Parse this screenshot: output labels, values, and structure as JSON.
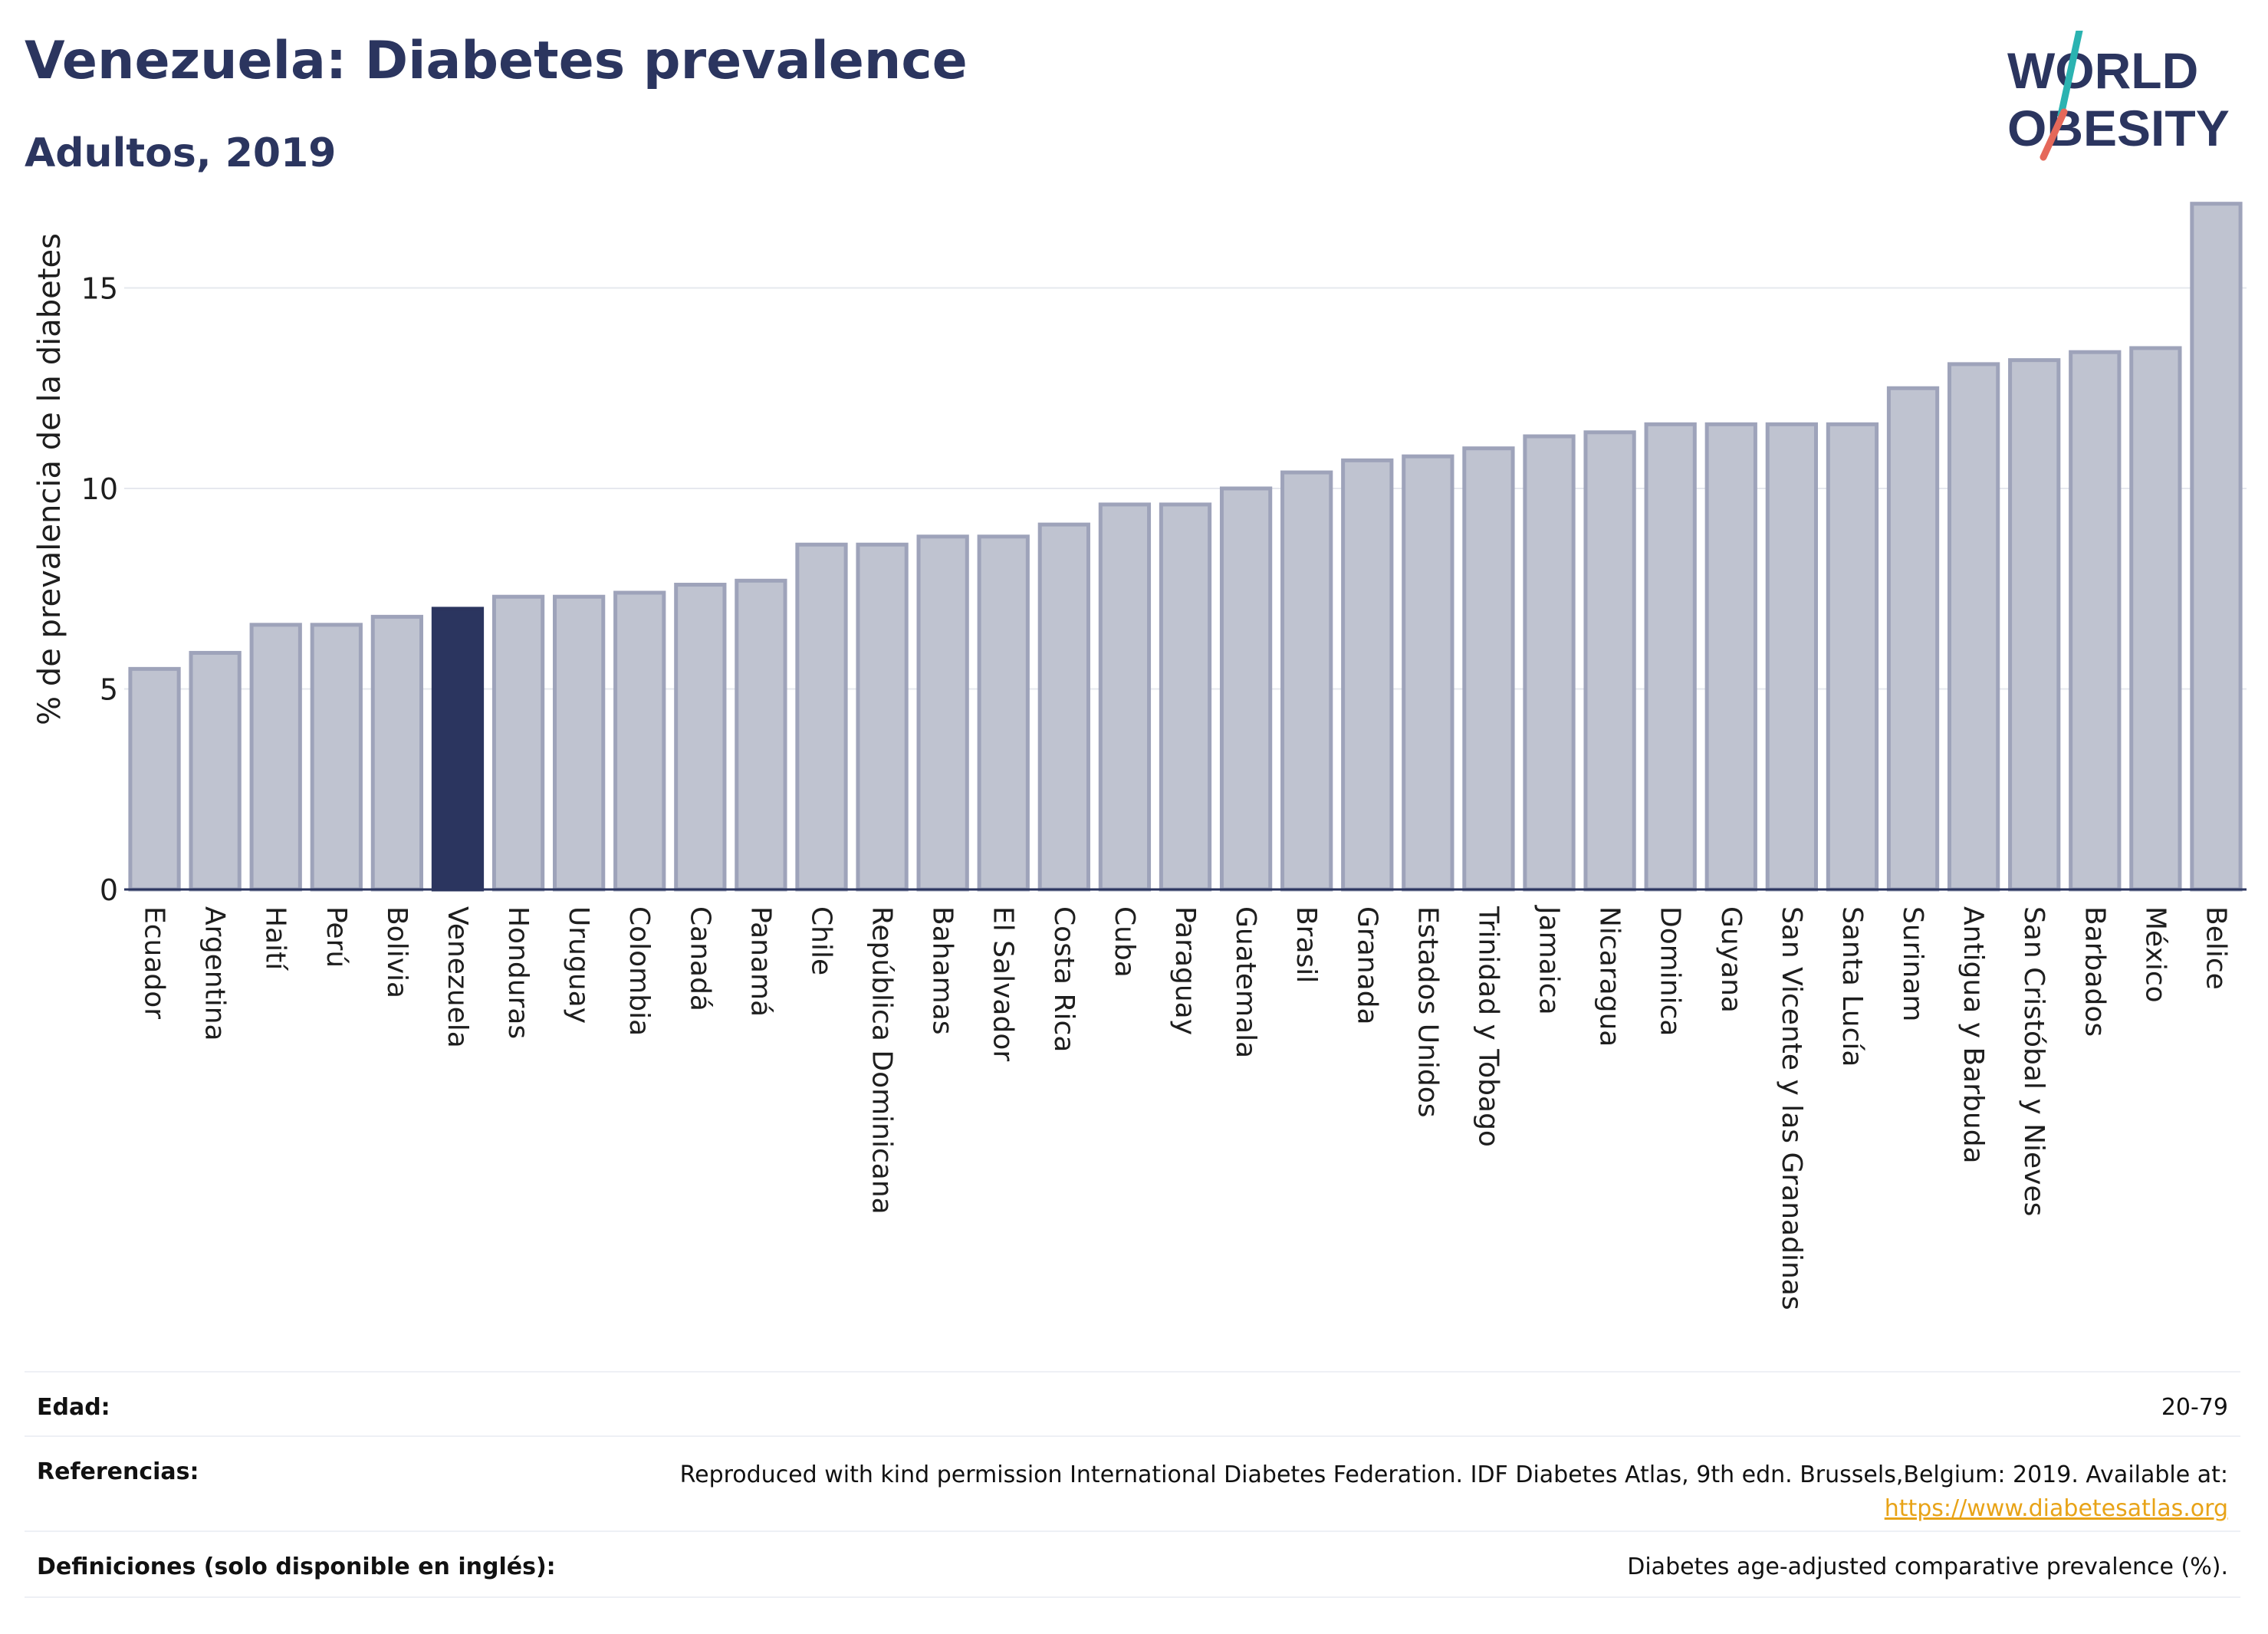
{
  "header": {
    "title": "Venezuela: Diabetes prevalence",
    "subtitle": "Adultos, 2019"
  },
  "logo": {
    "line1": "WORLD",
    "line2": "OBESITY",
    "slash_colors": [
      "#2bb3b1",
      "#e5685a"
    ]
  },
  "colors": {
    "bar": "#bfc3d0",
    "bar_stroke": "#9ea3ba",
    "highlight": "#2b355f",
    "grid": "#e6e8ee",
    "axis": "#2b355f"
  },
  "chart_data": {
    "type": "bar",
    "ylabel": "% de prevalencia de la diabetes",
    "ylim": [
      0,
      17.4
    ],
    "yticks": [
      0,
      5,
      10,
      15
    ],
    "highlight": "Venezuela",
    "categories": [
      "Ecuador",
      "Argentina",
      "Haití",
      "Perú",
      "Bolivia",
      "Venezuela",
      "Honduras",
      "Uruguay",
      "Colombia",
      "Canadá",
      "Panamá",
      "Chile",
      "República Dominicana",
      "Bahamas",
      "El Salvador",
      "Costa Rica",
      "Cuba",
      "Paraguay",
      "Guatemala",
      "Brasil",
      "Granada",
      "Estados Unidos",
      "Trinidad y Tobago",
      "Jamaica",
      "Nicaragua",
      "Dominica",
      "Guyana",
      "San Vicente y las Granadinas",
      "Santa Lucía",
      "Surinam",
      "Antigua y Barbuda",
      "San Cristóbal y Nieves",
      "Barbados",
      "México",
      "Belice"
    ],
    "values": [
      5.5,
      5.9,
      6.6,
      6.6,
      6.8,
      7.0,
      7.3,
      7.3,
      7.4,
      7.6,
      7.7,
      8.6,
      8.6,
      8.8,
      8.8,
      9.1,
      9.6,
      9.6,
      10.0,
      10.4,
      10.7,
      10.8,
      11.0,
      11.3,
      11.4,
      11.6,
      11.6,
      11.6,
      11.6,
      12.5,
      13.1,
      13.2,
      13.4,
      13.5,
      17.1
    ]
  },
  "meta": {
    "age_label": "Edad:",
    "age_value": "20-79",
    "refs_label": "Referencias:",
    "refs_value": "Reproduced with kind permission International Diabetes Federation. IDF Diabetes Atlas, 9th edn. Brussels,Belgium: 2019. Available at:",
    "refs_link": "https://www.diabetesatlas.org",
    "defs_label": "Definiciones (solo disponible en inglés):",
    "defs_value": "Diabetes age-adjusted comparative prevalence (%)."
  }
}
